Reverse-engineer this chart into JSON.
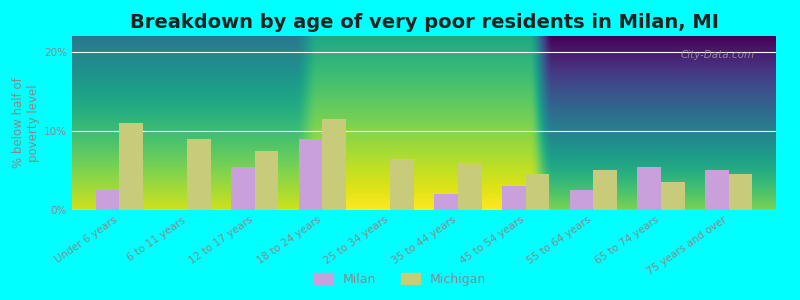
{
  "title": "Breakdown by age of very poor residents in Milan, MI",
  "categories": [
    "Under 6 years",
    "6 to 11 years",
    "12 to 17 years",
    "18 to 24 years",
    "25 to 34 years",
    "35 to 44 years",
    "45 to 54 years",
    "55 to 64 years",
    "65 to 74 years",
    "75 years and over"
  ],
  "milan_values": [
    2.5,
    0,
    5.5,
    9.0,
    0,
    2.0,
    3.0,
    2.5,
    5.5,
    5.0
  ],
  "michigan_values": [
    11.0,
    9.0,
    7.5,
    11.5,
    6.5,
    6.0,
    4.5,
    5.0,
    3.5,
    4.5
  ],
  "milan_color": "#c9a0dc",
  "michigan_color": "#c8cc7a",
  "background_color": "#00ffff",
  "plot_bg_top": "#c8d8a8",
  "plot_bg_bottom": "#f0f5e8",
  "ylabel": "% below half of\npoverty level",
  "ylim": [
    0,
    22
  ],
  "yticks": [
    0,
    10,
    20
  ],
  "ytick_labels": [
    "0%",
    "10%",
    "20%"
  ],
  "bar_width": 0.35,
  "title_fontsize": 14,
  "tick_label_fontsize": 7.5,
  "axis_label_fontsize": 8.5,
  "legend_labels": [
    "Milan",
    "Michigan"
  ],
  "watermark": "City-Data.com"
}
